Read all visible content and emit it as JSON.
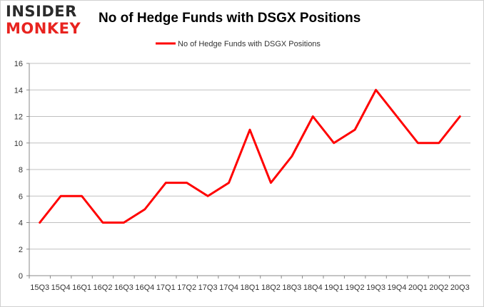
{
  "logo": {
    "line1": "INSIDER",
    "line2": "MONKEY"
  },
  "chart_data": {
    "type": "line",
    "title": "No of Hedge Funds with DSGX Positions",
    "xlabel": "",
    "ylabel": "",
    "categories": [
      "15Q3",
      "15Q4",
      "16Q1",
      "16Q2",
      "16Q3",
      "16Q4",
      "17Q1",
      "17Q2",
      "17Q3",
      "17Q4",
      "18Q1",
      "18Q2",
      "18Q3",
      "18Q4",
      "19Q1",
      "19Q2",
      "19Q3",
      "19Q4",
      "20Q1",
      "20Q2",
      "20Q3"
    ],
    "series": [
      {
        "name": "No of Hedge Funds with DSGX Positions",
        "color": "#ff0000",
        "values": [
          4,
          6,
          6,
          4,
          4,
          5,
          7,
          7,
          6,
          7,
          11,
          7,
          9,
          12,
          10,
          11,
          14,
          12,
          10,
          10,
          12
        ]
      }
    ],
    "ylim": [
      0,
      16
    ],
    "yticks": [
      0,
      2,
      4,
      6,
      8,
      10,
      12,
      14,
      16
    ],
    "grid": "horizontal",
    "legend": "top-center",
    "colors": {
      "line": "#ff0000",
      "grid": "#c0c0c0",
      "text": "#333333",
      "logo_dark": "#2b2b2b",
      "logo_red": "#e8231f"
    }
  }
}
